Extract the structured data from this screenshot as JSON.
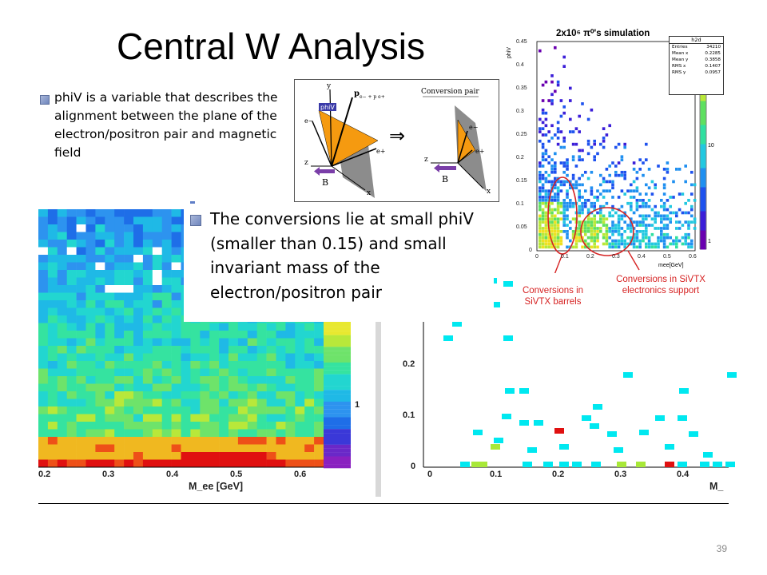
{
  "slide": {
    "title": "Central W Analysis",
    "slide_number": "39"
  },
  "bullets": [
    {
      "text": "phiV is a variable that describes the alignment between the plane of the electron/positron pair and magnetic field"
    },
    {
      "text": "The conversions lie at small phiV (smaller than 0.15) and small invariant mass of the electron/positron pair"
    }
  ],
  "diagram": {
    "left_labels": {
      "y": "y",
      "phiv": "phiV",
      "pair_momentum": "p",
      "pair_sub": "e− + p e+",
      "e_minus": "e−",
      "e_plus": "e+",
      "z": "z",
      "x": "x",
      "B": "B"
    },
    "arrow": "⇒",
    "right_title": "Conversion pair",
    "right_labels": {
      "e_minus": "e−",
      "e_plus": "e+",
      "z": "z",
      "x": "x",
      "B": "B"
    }
  },
  "sim_panel": {
    "title": "2x10⁶ π⁰'s simulation",
    "stats": {
      "name": "h2d",
      "rows": [
        {
          "label": "Entries",
          "value": "34210"
        },
        {
          "label": "Mean x",
          "value": "0.2285"
        },
        {
          "label": "Mean y",
          "value": "0.3858"
        },
        {
          "label": "RMS x",
          "value": "0.1407"
        },
        {
          "label": "RMS y",
          "value": "0.0957"
        }
      ]
    },
    "ylabel": "phiV",
    "xlabel": "mee[GeV]",
    "yticks": [
      "0",
      "0.05",
      "0.1",
      "0.15",
      "0.2",
      "0.25",
      "0.3",
      "0.35",
      "0.4",
      "0.45"
    ],
    "xticks": [
      "0",
      "0.1",
      "0.2",
      "0.3",
      "0.4",
      "0.5",
      "0.6"
    ],
    "zticks": [
      "10",
      "1"
    ],
    "annotations": [
      {
        "text": "Conversions in SiVTX barrels"
      },
      {
        "text": "Conversions in SiVTX electronics support"
      }
    ],
    "colors": {
      "annotation": "#d62222"
    }
  },
  "left_plot": {
    "xticks": [
      "0.2",
      "0.3",
      "0.4",
      "0.5",
      "0.6"
    ],
    "xlabel": "M_ee [GeV]",
    "zticks": [
      "1"
    ]
  },
  "right_plot": {
    "yticks": [
      "0",
      "0.1",
      "0.2"
    ],
    "xticks": [
      "0",
      "0.1",
      "0.2",
      "0.3",
      "0.4"
    ],
    "xlabel": "M_"
  }
}
